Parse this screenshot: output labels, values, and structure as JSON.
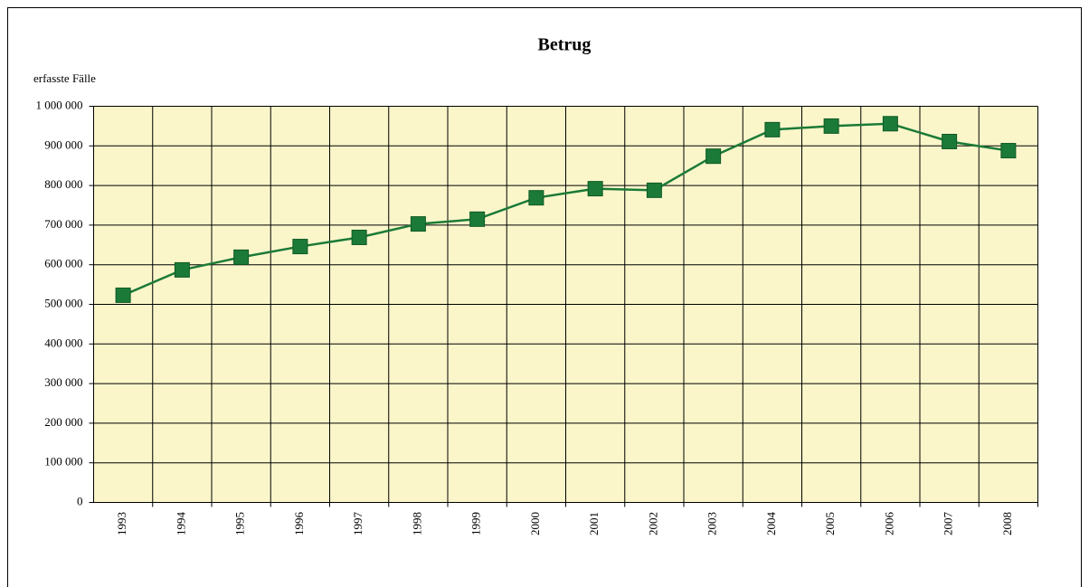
{
  "chart_data": {
    "type": "line",
    "title": "Betrug",
    "y_axis_label": "erfasste Fälle",
    "categories": [
      "1993",
      "1994",
      "1995",
      "1996",
      "1997",
      "1998",
      "1999",
      "2000",
      "2001",
      "2002",
      "2003",
      "2004",
      "2005",
      "2006",
      "2007",
      "2008"
    ],
    "series": [
      {
        "name": "erfasste Fälle",
        "color": "#1b7a37",
        "values": [
          523000,
          587000,
          619000,
          646000,
          669000,
          703000,
          715000,
          769000,
          792000,
          788000,
          874000,
          941000,
          950000,
          956000,
          911000,
          888000
        ]
      }
    ],
    "ylim": [
      0,
      1000000
    ],
    "yticks": [
      0,
      {
        "value": 100000,
        "label": "100 000"
      },
      {
        "value": 200000,
        "label": "200 000"
      },
      {
        "value": 300000,
        "label": "300 000"
      },
      {
        "value": 400000,
        "label": "400 000"
      },
      {
        "value": 500000,
        "label": "500 000"
      },
      {
        "value": 600000,
        "label": "600 000"
      },
      {
        "value": 700000,
        "label": "700 000"
      },
      {
        "value": 800000,
        "label": "800 000"
      },
      {
        "value": 900000,
        "label": "900 000"
      },
      {
        "value": 1000000,
        "label": "1 000 000"
      }
    ],
    "grid": true,
    "background": "#fbf6ca"
  }
}
